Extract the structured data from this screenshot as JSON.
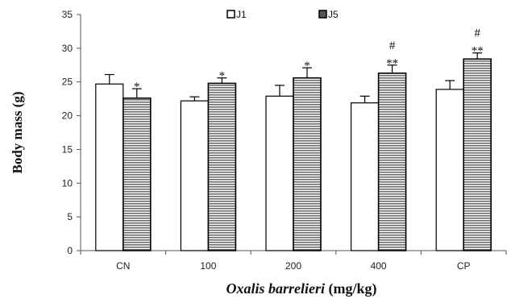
{
  "chart_data": {
    "type": "bar",
    "xlabel_italic": "Oxalis barrelieri",
    "xlabel_rest": " (mg/kg)",
    "ylabel": "Body mass (g)",
    "ylim": [
      0,
      35
    ],
    "yticks": [
      "0",
      "5",
      "10",
      "15",
      "20",
      "25",
      "30",
      "35"
    ],
    "categories": [
      "CN",
      "100",
      "200",
      "400",
      "CP"
    ],
    "legend_position": "top-center",
    "grid": false,
    "colors": {
      "J1": "#ffffff",
      "J5": "#8a8a8a",
      "edge": "#000000"
    },
    "series": [
      {
        "name": "J1",
        "values": [
          24.7,
          22.2,
          22.9,
          21.9,
          23.9
        ],
        "errors": [
          1.4,
          0.6,
          1.6,
          1.0,
          1.3
        ],
        "annotations": [
          "",
          "",
          "",
          "",
          ""
        ]
      },
      {
        "name": "J5",
        "values": [
          22.6,
          24.8,
          25.6,
          26.3,
          28.4
        ],
        "errors": [
          1.4,
          0.8,
          1.5,
          1.2,
          0.9
        ],
        "annotations": [
          "*",
          "*",
          "*",
          "#\n**",
          "#\n**"
        ]
      }
    ]
  }
}
